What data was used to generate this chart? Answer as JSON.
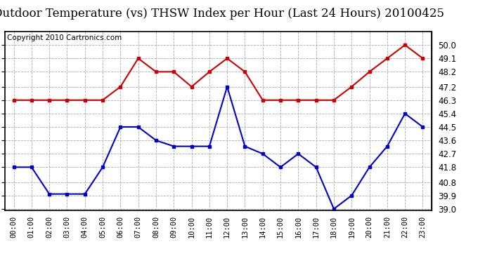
{
  "title": "Outdoor Temperature (vs) THSW Index per Hour (Last 24 Hours) 20100425",
  "copyright": "Copyright 2010 Cartronics.com",
  "hours": [
    "00:00",
    "01:00",
    "02:00",
    "03:00",
    "04:00",
    "05:00",
    "06:00",
    "07:00",
    "08:00",
    "09:00",
    "10:00",
    "11:00",
    "12:00",
    "13:00",
    "14:00",
    "15:00",
    "16:00",
    "17:00",
    "18:00",
    "19:00",
    "20:00",
    "21:00",
    "22:00",
    "23:00"
  ],
  "temp_blue": [
    41.8,
    41.8,
    40.0,
    40.0,
    40.0,
    41.8,
    44.5,
    44.5,
    43.6,
    43.2,
    43.2,
    43.2,
    47.2,
    43.2,
    42.7,
    41.8,
    42.7,
    41.8,
    39.0,
    39.9,
    41.8,
    43.2,
    45.4,
    44.5
  ],
  "thsw_red": [
    46.3,
    46.3,
    46.3,
    46.3,
    46.3,
    46.3,
    47.2,
    49.1,
    48.2,
    48.2,
    47.2,
    48.2,
    49.1,
    48.2,
    46.3,
    46.3,
    46.3,
    46.3,
    46.3,
    47.2,
    48.2,
    49.1,
    50.0,
    49.1
  ],
  "blue_color": "#0000cc",
  "red_color": "#cc0000",
  "bg_color": "#ffffff",
  "grid_color": "#aaaaaa",
  "ylim_min": 38.9,
  "ylim_max": 50.9,
  "ylabel_right_ticks": [
    39.0,
    39.9,
    40.8,
    41.8,
    42.7,
    43.6,
    44.5,
    45.4,
    46.3,
    47.2,
    48.2,
    49.1,
    50.0
  ],
  "title_fontsize": 12,
  "copyright_fontsize": 7.5,
  "tick_fontsize": 8.5,
  "xtick_fontsize": 7.5
}
